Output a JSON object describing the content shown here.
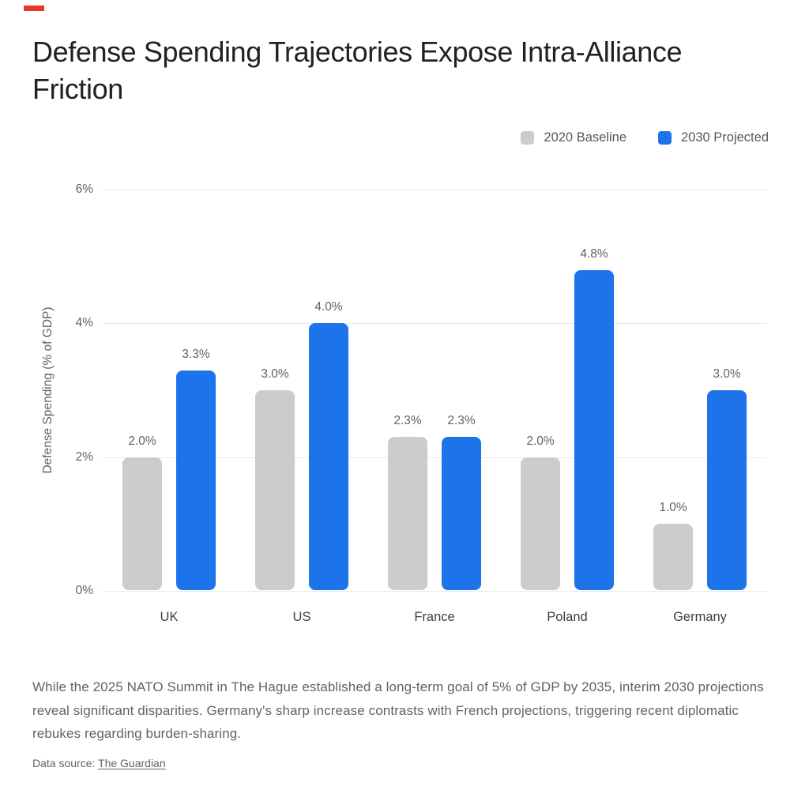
{
  "page": {
    "title": "Defense Spending Trajectories Expose Intra-Alliance Friction",
    "footer": "While the 2025 NATO Summit in The Hague established a long-term goal of 5% of GDP by 2035, interim 2030 projections reveal significant disparities. Germany's sharp increase contrasts with French projections, triggering recent diplomatic rebukes regarding burden-sharing.",
    "source_label": "Data source:",
    "source_link": "The Guardian"
  },
  "chart_data": {
    "type": "bar",
    "categories": [
      "UK",
      "US",
      "France",
      "Poland",
      "Germany"
    ],
    "series": [
      {
        "name": "2020 Baseline",
        "color": "#cccccc",
        "values": [
          2.0,
          3.0,
          2.3,
          2.0,
          1.0
        ],
        "labels": [
          "2.0%",
          "3.0%",
          "2.3%",
          "2.0%",
          "1.0%"
        ]
      },
      {
        "name": "2030 Projected",
        "color": "#1d73e9",
        "values": [
          3.3,
          4.0,
          2.3,
          4.8,
          3.0
        ],
        "labels": [
          "3.3%",
          "4.0%",
          "2.3%",
          "4.8%",
          "3.0%"
        ]
      }
    ],
    "title": "Defense Spending Trajectories Expose Intra-Alliance Friction",
    "xlabel": "",
    "ylabel": "Defense Spending (% of GDP)",
    "ylim": [
      0,
      6
    ],
    "yticks": [
      {
        "value": 0,
        "label": "0%"
      },
      {
        "value": 2,
        "label": "2%"
      },
      {
        "value": 4,
        "label": "4%"
      },
      {
        "value": 6,
        "label": "6%"
      }
    ],
    "grid": true,
    "legend_position": "top-right"
  },
  "colors": {
    "baseline": "#cccccc",
    "projected": "#1d73e9",
    "gridline": "#e9eaec",
    "title_text": "#202124",
    "muted_text": "#5f6368",
    "category_text": "#3c4043",
    "marker_red": "#e8362a"
  }
}
